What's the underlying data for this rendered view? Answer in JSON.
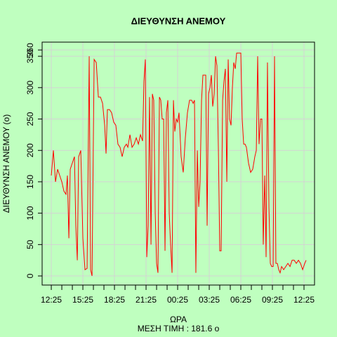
{
  "chart_data": {
    "type": "line",
    "title": "ΔΙΕΥΘΥΝΣΗ ΑΝΕΜΟΥ",
    "xlabel": "ΩΡΑ",
    "ylabel": "ΔΙΕΥΘΥΝΣΗ ΑΝΕΜΟΥ (o)",
    "subtitle": "ΜΕΣΗ ΤΙΜΗ :  181.6  o",
    "xlim": [
      -0.87,
      25
    ],
    "ylim": [
      -14.5,
      372.5
    ],
    "xticks": [
      {
        "value": 0,
        "label": "12:25"
      },
      {
        "value": 1,
        "label": null
      },
      {
        "value": 2,
        "label": null
      },
      {
        "value": 3,
        "label": "15:25"
      },
      {
        "value": 4,
        "label": null
      },
      {
        "value": 5,
        "label": null
      },
      {
        "value": 6,
        "label": "18:25"
      },
      {
        "value": 7,
        "label": null
      },
      {
        "value": 8,
        "label": null
      },
      {
        "value": 9,
        "label": "21:25"
      },
      {
        "value": 10,
        "label": null
      },
      {
        "value": 11,
        "label": null
      },
      {
        "value": 12,
        "label": "00:25"
      },
      {
        "value": 13,
        "label": null
      },
      {
        "value": 14,
        "label": null
      },
      {
        "value": 15,
        "label": "03:25"
      },
      {
        "value": 16,
        "label": null
      },
      {
        "value": 17,
        "label": null
      },
      {
        "value": 18,
        "label": "06:25"
      },
      {
        "value": 19,
        "label": null
      },
      {
        "value": 20,
        "label": null
      },
      {
        "value": 21,
        "label": "09:25"
      },
      {
        "value": 22,
        "label": null
      },
      {
        "value": 23,
        "label": null
      },
      {
        "value": 24,
        "label": "12:25"
      }
    ],
    "yticks": [
      0,
      50,
      100,
      150,
      200,
      250,
      300,
      350,
      360
    ],
    "grid": true,
    "series": [
      {
        "name": "ΔΙΕΥΘΥΝΣΗ ΑΝΕΜΟΥ",
        "color": "#ff0000",
        "x": [
          0,
          0.2,
          0.4,
          0.6,
          0.8,
          1,
          1.2,
          1.4,
          1.53,
          1.67,
          1.8,
          2,
          2.2,
          2.33,
          2.47,
          2.6,
          2.8,
          3,
          3.2,
          3.4,
          3.6,
          3.73,
          3.87,
          4.07,
          4.27,
          4.47,
          4.67,
          4.87,
          5.07,
          5.2,
          5.33,
          5.53,
          5.73,
          5.93,
          6.13,
          6.33,
          6.53,
          6.73,
          6.93,
          7.13,
          7.27,
          7.47,
          7.67,
          7.87,
          8.07,
          8.27,
          8.47,
          8.67,
          8.8,
          8.93,
          9.07,
          9.2,
          9.33,
          9.47,
          9.6,
          9.73,
          9.87,
          10,
          10.13,
          10.27,
          10.4,
          10.53,
          10.67,
          10.8,
          10.93,
          11.07,
          11.2,
          11.33,
          11.47,
          11.6,
          11.73,
          11.87,
          12,
          12.13,
          12.33,
          12.53,
          12.73,
          12.93,
          13.13,
          13.33,
          13.47,
          13.6,
          13.73,
          13.87,
          14,
          14.13,
          14.27,
          14.4,
          14.53,
          14.67,
          14.8,
          14.93,
          15.07,
          15.2,
          15.33,
          15.47,
          15.6,
          15.73,
          15.87,
          16,
          16.13,
          16.27,
          16.4,
          16.53,
          16.67,
          16.8,
          16.93,
          17.07,
          17.2,
          17.33,
          17.47,
          17.6,
          17.73,
          18,
          18.13,
          18.27,
          18.4,
          18.53,
          18.73,
          18.93,
          19.13,
          19.33,
          19.47,
          19.6,
          19.73,
          19.87,
          20,
          20.13,
          20.27,
          20.4,
          20.53,
          20.67,
          20.8,
          20.93,
          21.07,
          21.2,
          21.33,
          21.47,
          21.6,
          21.73,
          21.87,
          22.07,
          22.27,
          22.47,
          22.67,
          22.87,
          23.07,
          23.27,
          23.47,
          23.67,
          23.87,
          24.07,
          24.2
        ],
        "values": [
          160,
          200,
          150,
          170,
          160,
          150,
          135,
          130,
          160,
          60,
          170,
          180,
          190,
          80,
          25,
          190,
          200,
          60,
          10,
          12,
          350,
          10,
          0,
          345,
          340,
          285,
          285,
          275,
          240,
          195,
          265,
          265,
          260,
          245,
          240,
          210,
          205,
          190,
          205,
          210,
          205,
          225,
          205,
          210,
          220,
          210,
          225,
          215,
          310,
          345,
          30,
          80,
          285,
          50,
          290,
          280,
          100,
          20,
          5,
          285,
          280,
          250,
          250,
          40,
          260,
          280,
          100,
          50,
          5,
          280,
          230,
          250,
          245,
          260,
          190,
          165,
          220,
          260,
          280,
          280,
          275,
          280,
          5,
          200,
          110,
          150,
          280,
          320,
          320,
          320,
          80,
          290,
          300,
          320,
          270,
          290,
          350,
          335,
          200,
          40,
          40,
          280,
          310,
          330,
          150,
          345,
          250,
          240,
          300,
          340,
          330,
          355,
          355,
          355,
          250,
          210,
          210,
          205,
          180,
          165,
          170,
          190,
          200,
          350,
          210,
          250,
          250,
          50,
          160,
          30,
          340,
          110,
          20,
          15,
          15,
          350,
          20,
          20,
          10,
          5,
          15,
          10,
          15,
          20,
          15,
          25,
          25,
          20,
          25,
          20,
          10,
          20,
          25
        ]
      }
    ]
  }
}
